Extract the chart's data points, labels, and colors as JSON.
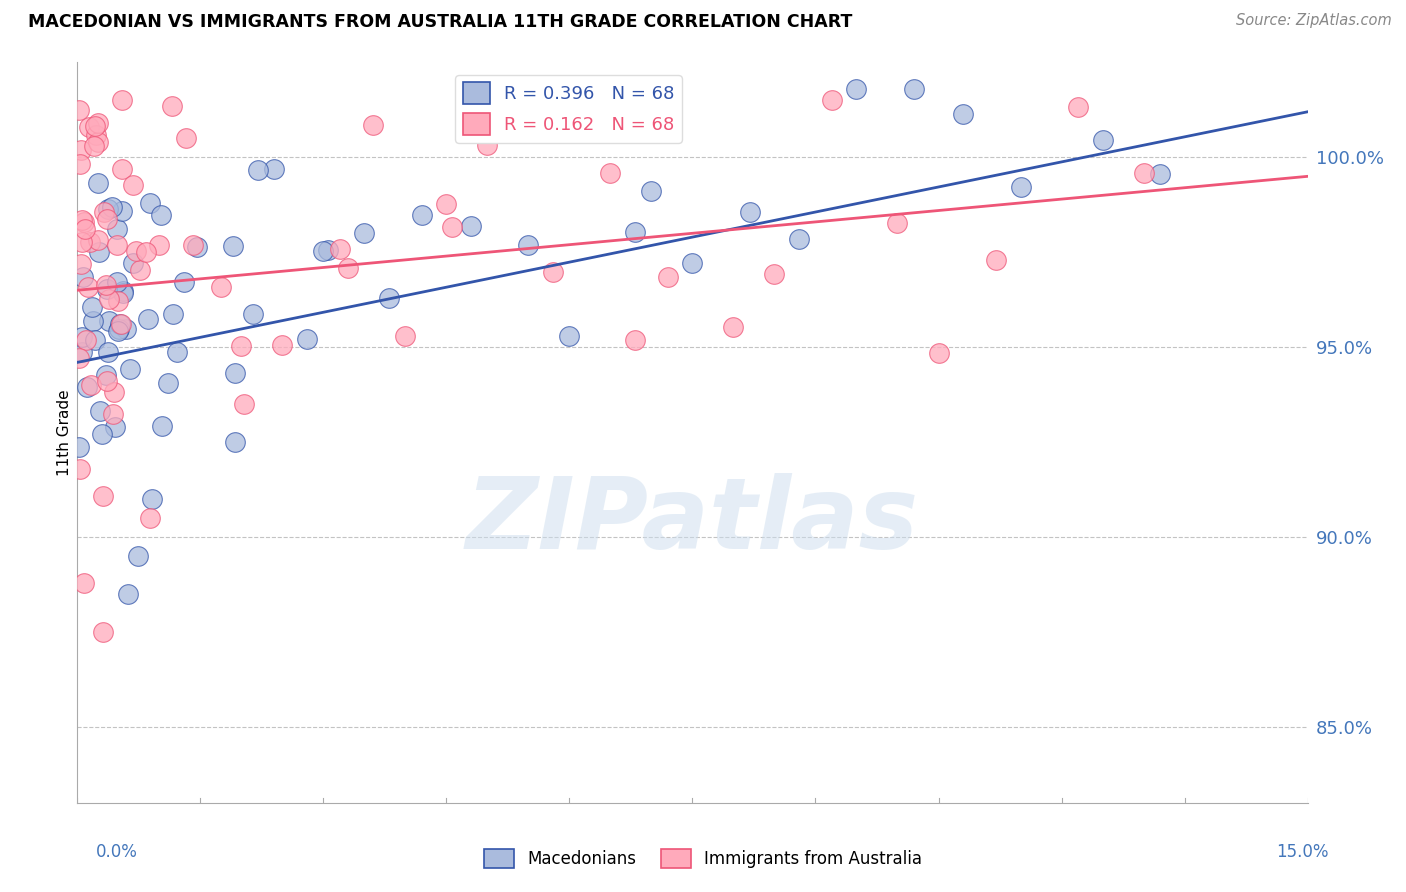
{
  "title": "MACEDONIAN VS IMMIGRANTS FROM AUSTRALIA 11TH GRADE CORRELATION CHART",
  "source": "Source: ZipAtlas.com",
  "ylabel": "11th Grade",
  "xlim": [
    0.0,
    15.0
  ],
  "ylim": [
    83.0,
    102.5
  ],
  "yticks": [
    85.0,
    90.0,
    95.0,
    100.0
  ],
  "ytick_labels": [
    "85.0%",
    "90.0%",
    "95.0%",
    "100.0%"
  ],
  "blue_R": 0.396,
  "blue_N": 68,
  "pink_R": 0.162,
  "pink_N": 68,
  "blue_color": "#aabbdd",
  "pink_color": "#ffaabb",
  "blue_line_color": "#3355aa",
  "pink_line_color": "#ee5577",
  "blue_line_y0": 94.6,
  "blue_line_y1": 101.2,
  "pink_line_y0": 96.5,
  "pink_line_y1": 99.5,
  "watermark_text": "ZIPatlas",
  "watermark_color": "#ccddee",
  "watermark_alpha": 0.5
}
